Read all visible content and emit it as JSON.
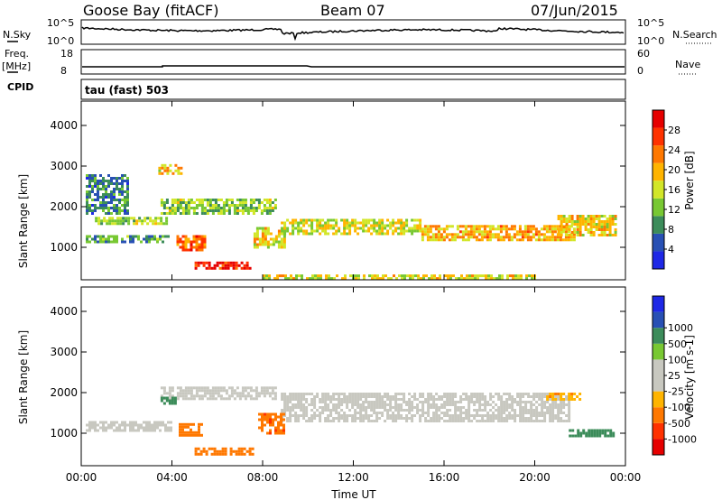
{
  "header": {
    "station": "Goose Bay (fitACF)",
    "beam": "Beam 07",
    "date": "07/Jun/2015"
  },
  "top_panels": {
    "noise": {
      "left_label": "N.Sky",
      "right_label": "N.Search",
      "left_ticks": [
        "10^5",
        "10^0"
      ],
      "right_ticks": [
        "10^5",
        "10^0"
      ]
    },
    "freq": {
      "left_label_1": "Freq.",
      "left_label_2": "[MHz]",
      "left_ticks": [
        "18",
        "8"
      ],
      "right_label": "Nave",
      "right_ticks": [
        "60",
        "0"
      ]
    },
    "cpid": {
      "label": "CPID",
      "value": "tau (fast) 503"
    }
  },
  "colors": {
    "power_scale": [
      "#1e28e6",
      "#2850b4",
      "#3c8c5a",
      "#78c832",
      "#d2e628",
      "#ffb400",
      "#ff7800",
      "#ff3200",
      "#e60000"
    ],
    "velocity_scale": [
      "#e60000",
      "#ff3200",
      "#ff7800",
      "#ffb400",
      "#c8c8c0",
      "#c8c8c0",
      "#78c832",
      "#3c8c5a",
      "#2850b4",
      "#1e28e6"
    ],
    "ground_scatter": "#c8c8c0"
  },
  "chart_data": [
    {
      "type": "heatmap",
      "name": "power",
      "x_ticks": [
        "00:00",
        "04:00",
        "08:00",
        "12:00",
        "16:00",
        "20:00",
        "00:00"
      ],
      "xlim": [
        0,
        24
      ],
      "y_ticks": [
        "1000",
        "2000",
        "3000",
        "4000"
      ],
      "ylim": [
        200,
        4600
      ],
      "ylabel": "Slant Range [km]",
      "colorbar_label": "Power [dB]",
      "colorbar_ticks": [
        "4",
        "8",
        "12",
        "16",
        "20",
        "24",
        "28"
      ],
      "colorbar_range": [
        0,
        32
      ],
      "features": [
        {
          "t0": 0.2,
          "t1": 4.0,
          "r0": 1100,
          "r1": 1300,
          "v": 10
        },
        {
          "t0": 0.6,
          "t1": 3.8,
          "r0": 1550,
          "r1": 1750,
          "v": 14
        },
        {
          "t0": 3.5,
          "t1": 8.6,
          "r0": 1800,
          "r1": 2200,
          "v": 13
        },
        {
          "t0": 4.2,
          "t1": 5.4,
          "r0": 900,
          "r1": 1300,
          "v": 24
        },
        {
          "t0": 5.0,
          "t1": 7.5,
          "r0": 500,
          "r1": 650,
          "v": 28
        },
        {
          "t0": 7.6,
          "t1": 9.0,
          "r0": 1000,
          "r1": 1500,
          "v": 18
        },
        {
          "t0": 8.8,
          "t1": 15.0,
          "r0": 1350,
          "r1": 1700,
          "v": 16
        },
        {
          "t0": 15.0,
          "t1": 21.8,
          "r0": 1150,
          "r1": 1550,
          "v": 20
        },
        {
          "t0": 21.0,
          "t1": 23.6,
          "r0": 1300,
          "r1": 1800,
          "v": 18
        },
        {
          "t0": 8.0,
          "t1": 20.0,
          "r0": 230,
          "r1": 330,
          "v": 17
        },
        {
          "t0": 3.4,
          "t1": 4.4,
          "r0": 2800,
          "r1": 3050,
          "v": 19
        },
        {
          "t0": 0.2,
          "t1": 2.0,
          "r0": 1800,
          "r1": 2800,
          "v": 8
        }
      ]
    },
    {
      "type": "heatmap",
      "name": "velocity",
      "x_ticks": [
        "00:00",
        "04:00",
        "08:00",
        "12:00",
        "16:00",
        "20:00",
        "00:00"
      ],
      "xlim": [
        0,
        24
      ],
      "y_ticks": [
        "1000",
        "2000",
        "3000",
        "4000"
      ],
      "ylim": [
        200,
        4600
      ],
      "xlabel": "Time UT",
      "ylabel": "Slant Range [km]",
      "colorbar_label": "Velocity [m s-1]",
      "colorbar_ticks": [
        "-1000",
        "-500",
        "-100",
        "-25",
        "25",
        "100",
        "500",
        "1000"
      ],
      "features": [
        {
          "t0": 0.2,
          "t1": 4.0,
          "r0": 1050,
          "r1": 1300,
          "v": 0
        },
        {
          "t0": 3.5,
          "t1": 8.6,
          "r0": 1850,
          "r1": 2150,
          "v": 0
        },
        {
          "t0": 8.8,
          "t1": 21.5,
          "r0": 1300,
          "r1": 2000,
          "v": 0
        },
        {
          "t0": 4.3,
          "t1": 5.3,
          "r0": 950,
          "r1": 1250,
          "v": -300
        },
        {
          "t0": 5.0,
          "t1": 7.6,
          "r0": 500,
          "r1": 650,
          "v": -200
        },
        {
          "t0": 7.8,
          "t1": 8.9,
          "r0": 1000,
          "r1": 1500,
          "v": -400
        },
        {
          "t0": 3.5,
          "t1": 4.2,
          "r0": 1700,
          "r1": 1900,
          "v": 200
        },
        {
          "t0": 21.5,
          "t1": 23.5,
          "r0": 900,
          "r1": 1100,
          "v": 150
        },
        {
          "t0": 20.5,
          "t1": 22.0,
          "r0": 1800,
          "r1": 2000,
          "v": -80
        }
      ]
    }
  ]
}
